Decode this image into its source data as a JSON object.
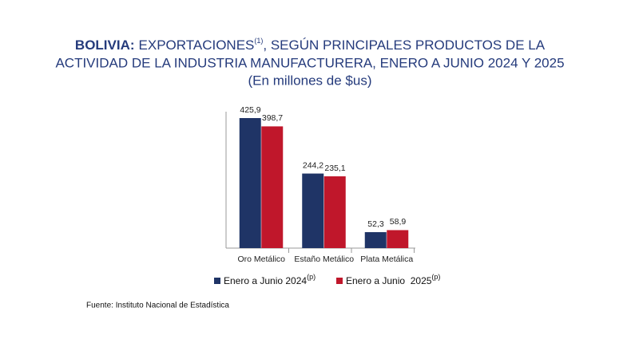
{
  "chart_data": {
    "type": "bar",
    "title": {
      "lead": "BOLIVIA:",
      "text": "EXPORTACIONES",
      "note": "(1)",
      "rest": ", SEGÚN PRINCIPALES PRODUCTOS DE LA",
      "line2": "ACTIVIDAD DE LA INDUSTRIA MANUFACTURERA, ENERO A JUNIO 2024 Y 2025"
    },
    "subtitle": "(En millones de $us)",
    "categories": [
      "Oro Metálico",
      "Estaño Metálico",
      "Plata Metálica"
    ],
    "series": [
      {
        "name": "Enero a Junio 2024",
        "name_note": "(p)",
        "color": "#1f3466",
        "values": [
          425.9,
          244.2,
          52.3
        ],
        "value_labels": [
          "425,9",
          "244,2",
          "52,3"
        ]
      },
      {
        "name": "Enero a Junio  2025",
        "name_note": "(p)",
        "color": "#c0172b",
        "values": [
          398.7,
          235.1,
          58.9
        ],
        "value_labels": [
          "398,7",
          "235,1",
          "58,9"
        ]
      }
    ],
    "source": "Fuente: Instituto Nacional de Estadística"
  }
}
